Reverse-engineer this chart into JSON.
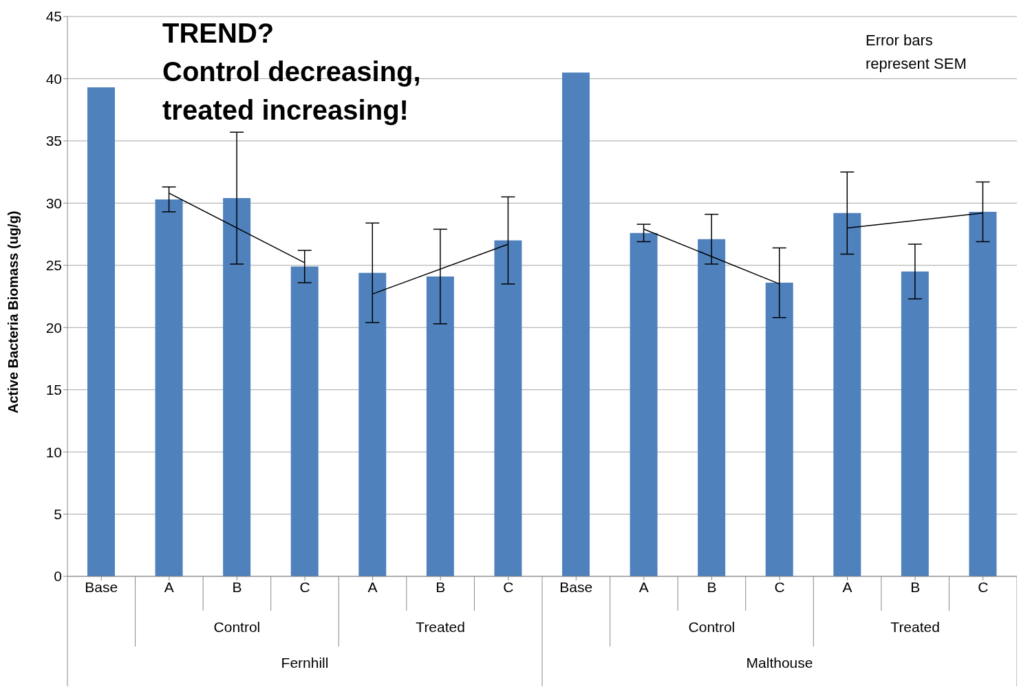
{
  "chart_data": {
    "type": "bar",
    "ylabel": "Active Bacteria Biomass (ug/g)",
    "categories": [
      "Base",
      "A",
      "B",
      "C",
      "A",
      "B",
      "C",
      "Base",
      "A",
      "B",
      "C",
      "A",
      "B",
      "C"
    ],
    "series": [
      {
        "color": "#4f81bd",
        "values": [
          39.3,
          30.3,
          30.4,
          24.9,
          24.4,
          24.1,
          27.0,
          40.5,
          27.6,
          27.1,
          23.6,
          29.2,
          24.5,
          29.3
        ],
        "errors": [
          null,
          1.0,
          5.3,
          1.3,
          4.0,
          3.8,
          3.5,
          null,
          0.7,
          2.0,
          2.8,
          3.3,
          2.2,
          2.4
        ]
      },
      {
        "type": "line",
        "color": "#000000",
        "values": [
          null,
          30.8,
          null,
          25.2,
          null,
          null,
          null,
          null,
          null,
          null,
          null,
          null,
          null,
          null
        ]
      },
      {
        "type": "line",
        "color": "#000000",
        "values": [
          null,
          null,
          null,
          null,
          22.7,
          null,
          26.7,
          null,
          null,
          null,
          null,
          null,
          null,
          null
        ]
      },
      {
        "type": "line",
        "color": "#000000",
        "values": [
          null,
          null,
          null,
          null,
          null,
          null,
          null,
          null,
          27.9,
          null,
          23.5,
          null,
          null,
          null
        ]
      },
      {
        "type": "line",
        "color": "#000000",
        "values": [
          null,
          null,
          null,
          null,
          null,
          null,
          null,
          null,
          null,
          null,
          null,
          28.0,
          null,
          29.2
        ]
      }
    ],
    "ylim": [
      0,
      45
    ],
    "yticks": [
      0,
      5,
      10,
      15,
      20,
      25,
      30,
      35,
      40,
      45
    ],
    "grid": "y",
    "marker": "none",
    "line_style": "solid",
    "annotations": [
      "TREND?\nControl decreasing,\ntreated increasing!",
      "Error bars represent SEM",
      "Control",
      "Treated",
      "Fernhill",
      "Control",
      "Treated",
      "Malthouse"
    ]
  }
}
